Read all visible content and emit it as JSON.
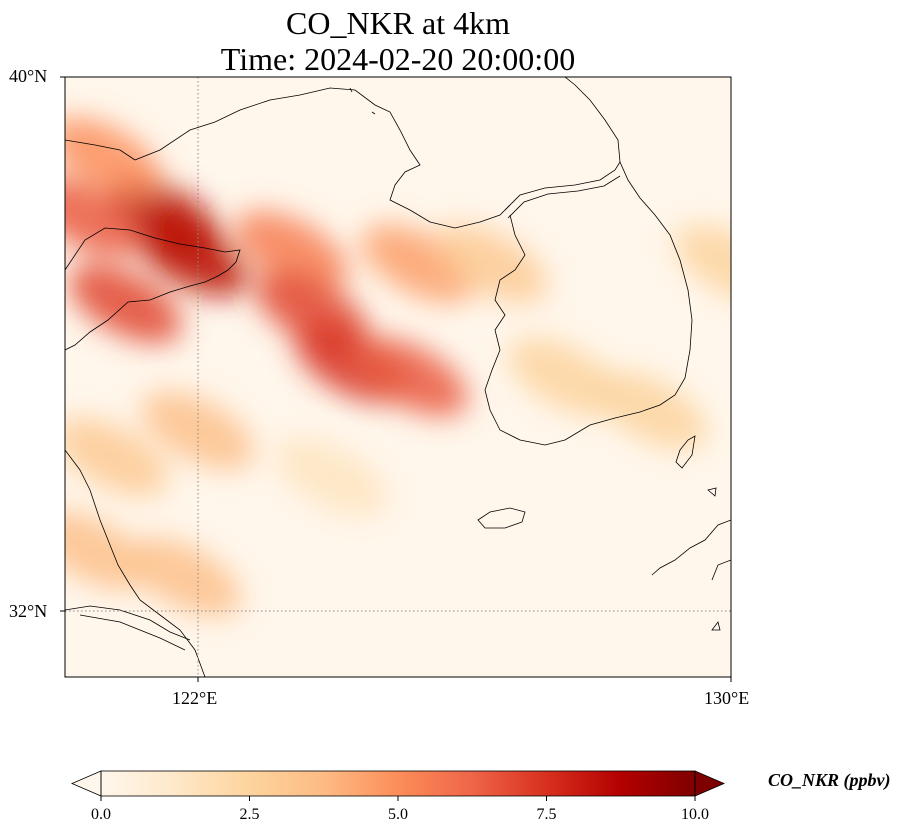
{
  "figure": {
    "title_line1": "CO_NKR at 4km",
    "title_line2": "Time: 2024-02-20 20:00:00"
  },
  "map": {
    "variable": "CO_NKR",
    "units": "ppbv",
    "extent": {
      "lon_min": 120.0,
      "lon_max": 130.0,
      "lat_min": 31.0,
      "lat_max": 40.0
    },
    "gridlines": {
      "lon": [
        122
      ],
      "lat": [
        32
      ],
      "style": "dotted",
      "color": "#808080"
    },
    "lat_tick_labels": [
      "40°N",
      "32°N"
    ],
    "lon_tick_labels": [
      "122°E",
      "130°E"
    ],
    "coastline_color": "#000000",
    "plume_field": [
      {
        "lon": 121.5,
        "lat": 37.9,
        "value": 8.5
      },
      {
        "lon": 121.9,
        "lat": 37.3,
        "value": 8.5
      },
      {
        "lon": 120.9,
        "lat": 36.6,
        "value": 7.0
      },
      {
        "lon": 120.3,
        "lat": 37.9,
        "value": 6.5
      },
      {
        "lon": 120.6,
        "lat": 38.8,
        "value": 5.0
      },
      {
        "lon": 123.4,
        "lat": 37.4,
        "value": 5.5
      },
      {
        "lon": 123.7,
        "lat": 36.5,
        "value": 7.0
      },
      {
        "lon": 124.3,
        "lat": 35.7,
        "value": 7.5
      },
      {
        "lon": 125.2,
        "lat": 35.5,
        "value": 6.5
      },
      {
        "lon": 125.3,
        "lat": 37.2,
        "value": 4.5
      },
      {
        "lon": 126.4,
        "lat": 37.2,
        "value": 3.0
      },
      {
        "lon": 127.5,
        "lat": 35.5,
        "value": 2.5
      },
      {
        "lon": 128.8,
        "lat": 35.0,
        "value": 2.5
      },
      {
        "lon": 130.0,
        "lat": 37.2,
        "value": 2.5
      },
      {
        "lon": 122.0,
        "lat": 34.7,
        "value": 3.5
      },
      {
        "lon": 120.7,
        "lat": 34.3,
        "value": 3.0
      },
      {
        "lon": 121.8,
        "lat": 32.5,
        "value": 3.5
      },
      {
        "lon": 120.4,
        "lat": 32.9,
        "value": 3.5
      },
      {
        "lon": 124.0,
        "lat": 34.0,
        "value": 1.5
      }
    ]
  },
  "colorbar": {
    "vmin": 0.0,
    "vmax": 10.0,
    "extend": "both",
    "colormap": [
      "#fff7ec",
      "#fee8c8",
      "#fdd49e",
      "#fdbb84",
      "#fc8d59",
      "#ef6548",
      "#d7301f",
      "#b30000",
      "#7f0000"
    ],
    "ticks": [
      "0.0",
      "2.5",
      "5.0",
      "7.5",
      "10.0"
    ],
    "label": "CO_NKR (ppbv)"
  }
}
